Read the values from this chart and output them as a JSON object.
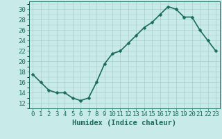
{
  "x": [
    0,
    1,
    2,
    3,
    4,
    5,
    6,
    7,
    8,
    9,
    10,
    11,
    12,
    13,
    14,
    15,
    16,
    17,
    18,
    19,
    20,
    21,
    22,
    23
  ],
  "y": [
    17.5,
    16.0,
    14.5,
    14.0,
    14.0,
    13.0,
    12.5,
    13.0,
    16.0,
    19.5,
    21.5,
    22.0,
    23.5,
    25.0,
    26.5,
    27.5,
    29.0,
    30.5,
    30.0,
    28.5,
    28.5,
    26.0,
    24.0,
    22.0
  ],
  "xlabel": "Humidex (Indice chaleur)",
  "xlim": [
    -0.5,
    23.5
  ],
  "ylim": [
    11.0,
    31.5
  ],
  "yticks": [
    12,
    14,
    16,
    18,
    20,
    22,
    24,
    26,
    28,
    30
  ],
  "xticks": [
    0,
    1,
    2,
    3,
    4,
    5,
    6,
    7,
    8,
    9,
    10,
    11,
    12,
    13,
    14,
    15,
    16,
    17,
    18,
    19,
    20,
    21,
    22,
    23
  ],
  "line_color": "#1a6b5a",
  "marker_color": "#1a6b5a",
  "bg_color": "#c8eae8",
  "grid_color": "#a8d0cc",
  "tick_label_color": "#1a6b5a",
  "xlabel_color": "#1a6b5a",
  "xlabel_fontsize": 7.5,
  "tick_fontsize": 6.5,
  "line_width": 1.2,
  "marker_size": 2.5
}
